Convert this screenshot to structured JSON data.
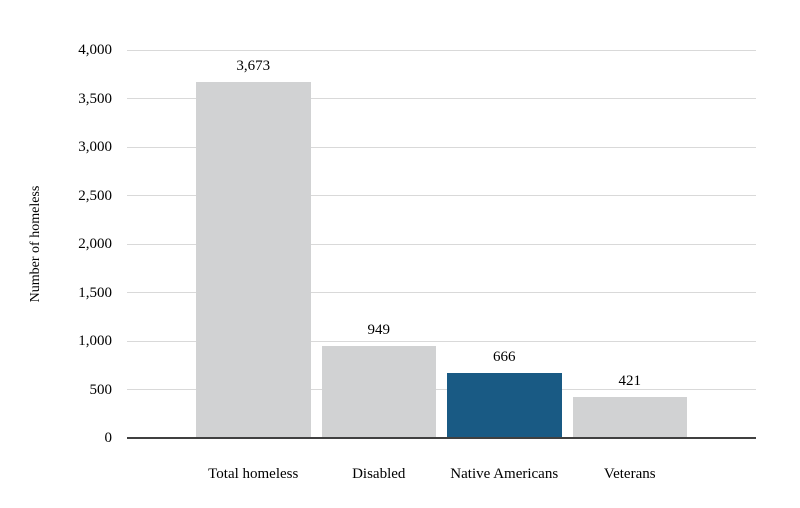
{
  "chart_data": {
    "type": "bar",
    "title": "",
    "categories": [
      "Total homeless",
      "Disabled",
      "Native Americans",
      "Veterans"
    ],
    "values": [
      3673,
      949,
      666,
      421
    ],
    "data_labels": [
      "3,673",
      "949",
      "666",
      "421"
    ],
    "xlabel": "",
    "ylabel": "Number of homeless",
    "ylim": [
      0,
      4000
    ],
    "ytick_interval": 500,
    "yticks": [
      {
        "value": 0,
        "label": "0"
      },
      {
        "value": 500,
        "label": "500"
      },
      {
        "value": 1000,
        "label": "1,000"
      },
      {
        "value": 1500,
        "label": "1,500"
      },
      {
        "value": 2000,
        "label": "2,000"
      },
      {
        "value": 2500,
        "label": "2,500"
      },
      {
        "value": 3000,
        "label": "3,000"
      },
      {
        "value": 3500,
        "label": "3,500"
      },
      {
        "value": 4000,
        "label": "4,000"
      }
    ],
    "grid": true,
    "legend": false,
    "highlighted_category": "Native Americans",
    "bar_colors": [
      "#D1D2D3",
      "#D1D2D3",
      "#195A84",
      "#D1D2D3"
    ],
    "colors": {
      "bar_default": "#D1D2D3",
      "bar_highlight": "#195A84",
      "gridline": "#D9D9D9",
      "axis_line": "#404040",
      "text": "#000000"
    }
  }
}
